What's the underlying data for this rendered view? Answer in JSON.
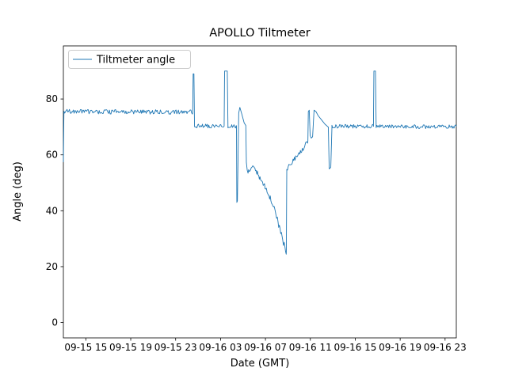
{
  "chart_data": {
    "type": "line",
    "title": "APOLLO Tiltmeter",
    "xlabel": "Date (GMT)",
    "ylabel": "Angle (deg)",
    "legend_label": "Tiltmeter angle",
    "legend_position": "upper left",
    "line_color": "#1f77b4",
    "grid": false,
    "ylim": [
      -5.5,
      99
    ],
    "yticks": [
      0,
      20,
      40,
      60,
      80
    ],
    "xlim_hours": [
      0,
      35
    ],
    "x_origin": "09-15 13:00 GMT",
    "xticks": [
      {
        "t": 2,
        "label": "09-15 15"
      },
      {
        "t": 6,
        "label": "09-15 19"
      },
      {
        "t": 10,
        "label": "09-15 23"
      },
      {
        "t": 14,
        "label": "09-16 03"
      },
      {
        "t": 18,
        "label": "09-16 07"
      },
      {
        "t": 22,
        "label": "09-16 11"
      },
      {
        "t": 26,
        "label": "09-16 15"
      },
      {
        "t": 30,
        "label": "09-16 19"
      },
      {
        "t": 34,
        "label": "09-16 23"
      }
    ],
    "series": [
      {
        "name": "Tiltmeter angle",
        "path": [
          {
            "type": "line",
            "points": [
              [
                0,
                57.5
              ],
              [
                0.05,
                75.5
              ]
            ]
          },
          {
            "type": "noisy",
            "t0": 0.05,
            "t1": 11.5,
            "y0": 75.5,
            "y1": 75.3,
            "amp": 0.8
          },
          {
            "type": "line",
            "points": [
              [
                11.52,
                75.5
              ],
              [
                11.56,
                89
              ],
              [
                11.63,
                89
              ],
              [
                11.68,
                70.5
              ]
            ]
          },
          {
            "type": "noisy",
            "t0": 11.68,
            "t1": 14.3,
            "y0": 70.3,
            "y1": 70.3,
            "amp": 0.7
          },
          {
            "type": "line",
            "points": [
              [
                14.32,
                70.3
              ],
              [
                14.36,
                90
              ],
              [
                14.6,
                90
              ],
              [
                14.66,
                70.5
              ]
            ]
          },
          {
            "type": "noisy",
            "t0": 14.66,
            "t1": 15.4,
            "y0": 70.2,
            "y1": 70.2,
            "amp": 0.6
          },
          {
            "type": "line",
            "points": [
              [
                15.42,
                70.2
              ],
              [
                15.45,
                43
              ],
              [
                15.5,
                43.5
              ],
              [
                15.62,
                75
              ],
              [
                15.72,
                77
              ],
              [
                15.9,
                74.5
              ],
              [
                16.1,
                71.5
              ],
              [
                16.25,
                70.5
              ],
              [
                16.3,
                57.5
              ]
            ]
          },
          {
            "type": "noisy_path",
            "amp": 1.1,
            "points": [
              [
                16.3,
                56.5
              ],
              [
                16.45,
                53.5
              ],
              [
                16.6,
                55
              ],
              [
                16.8,
                56.5
              ],
              [
                17.0,
                55.5
              ],
              [
                17.4,
                52.5
              ],
              [
                17.8,
                50
              ],
              [
                18.2,
                46.5
              ],
              [
                18.6,
                43
              ],
              [
                19.0,
                38
              ],
              [
                19.3,
                33
              ],
              [
                19.6,
                28.5
              ],
              [
                19.85,
                25.2
              ]
            ]
          },
          {
            "type": "line",
            "points": [
              [
                19.86,
                25.2
              ],
              [
                19.9,
                54.5
              ]
            ]
          },
          {
            "type": "noisy_path",
            "amp": 0.8,
            "points": [
              [
                19.9,
                54.8
              ],
              [
                20.4,
                57.5
              ],
              [
                21.0,
                60.5
              ],
              [
                21.4,
                62.5
              ],
              [
                21.75,
                64.8
              ]
            ]
          },
          {
            "type": "line",
            "points": [
              [
                21.78,
                65
              ],
              [
                21.82,
                75.5
              ],
              [
                21.9,
                76
              ],
              [
                21.98,
                67
              ],
              [
                22.08,
                66
              ],
              [
                22.2,
                66.5
              ],
              [
                22.33,
                76
              ],
              [
                22.5,
                75.5
              ],
              [
                22.7,
                74
              ],
              [
                23.0,
                72.5
              ],
              [
                23.3,
                71
              ],
              [
                23.58,
                70
              ]
            ]
          },
          {
            "type": "line",
            "points": [
              [
                23.6,
                70
              ],
              [
                23.68,
                55
              ],
              [
                23.82,
                55.5
              ],
              [
                23.92,
                69.5
              ]
            ]
          },
          {
            "type": "noisy",
            "t0": 23.92,
            "t1": 27.6,
            "y0": 70.2,
            "y1": 70.2,
            "amp": 0.7
          },
          {
            "type": "line",
            "points": [
              [
                27.62,
                70.2
              ],
              [
                27.66,
                90
              ],
              [
                27.8,
                90
              ],
              [
                27.86,
                70.5
              ]
            ]
          },
          {
            "type": "noisy",
            "t0": 27.86,
            "t1": 35,
            "y0": 70.2,
            "y1": 70.0,
            "amp": 0.7
          }
        ]
      }
    ]
  }
}
